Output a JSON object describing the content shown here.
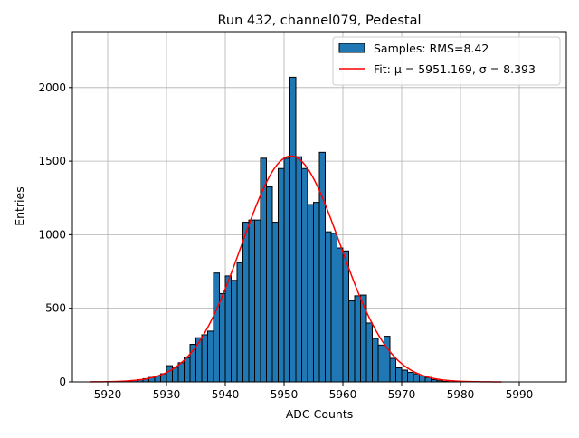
{
  "chart_data": {
    "type": "bar",
    "title": "Run 432, channel079, Pedestal",
    "xlabel": "ADC Counts",
    "ylabel": "Entries",
    "xlim": [
      5914,
      5998
    ],
    "ylim": [
      0,
      2380
    ],
    "xticks": [
      5920,
      5930,
      5940,
      5950,
      5960,
      5970,
      5980,
      5990
    ],
    "yticks": [
      0,
      500,
      1000,
      1500,
      2000
    ],
    "grid": true,
    "legend_position": "top-right",
    "bin_width": 1,
    "colors": {
      "bars": "#1f77b4",
      "edge": "#000000",
      "fit": "#ff0000",
      "grid": "#b0b0b0"
    },
    "series": [
      {
        "name": "Samples: RMS=8.42",
        "kind": "histogram",
        "bins": [
          5924,
          5925,
          5926,
          5927,
          5928,
          5929,
          5930,
          5931,
          5932,
          5933,
          5934,
          5935,
          5936,
          5937,
          5938,
          5939,
          5940,
          5941,
          5942,
          5943,
          5944,
          5945,
          5946,
          5947,
          5948,
          5949,
          5950,
          5951,
          5952,
          5953,
          5954,
          5955,
          5956,
          5957,
          5958,
          5959,
          5960,
          5961,
          5962,
          5963,
          5964,
          5965,
          5966,
          5967,
          5968,
          5969,
          5970,
          5971,
          5972,
          5973,
          5974,
          5975,
          5976,
          5977
        ],
        "values": [
          10,
          15,
          22,
          30,
          40,
          55,
          110,
          100,
          130,
          165,
          255,
          300,
          320,
          345,
          740,
          600,
          720,
          690,
          810,
          1085,
          1100,
          1100,
          1520,
          1325,
          1085,
          1450,
          1520,
          2070,
          1530,
          1450,
          1205,
          1220,
          1560,
          1020,
          1010,
          910,
          890,
          550,
          585,
          590,
          400,
          295,
          250,
          310,
          160,
          95,
          80,
          65,
          55,
          40,
          30,
          15,
          8,
          3
        ]
      },
      {
        "name": "Fit: μ = 5951.169, σ = 8.393",
        "kind": "gaussian-fit",
        "mu": 5951.169,
        "sigma": 8.393,
        "amplitude": 1535,
        "x_range": [
          5917,
          5987
        ]
      }
    ]
  }
}
